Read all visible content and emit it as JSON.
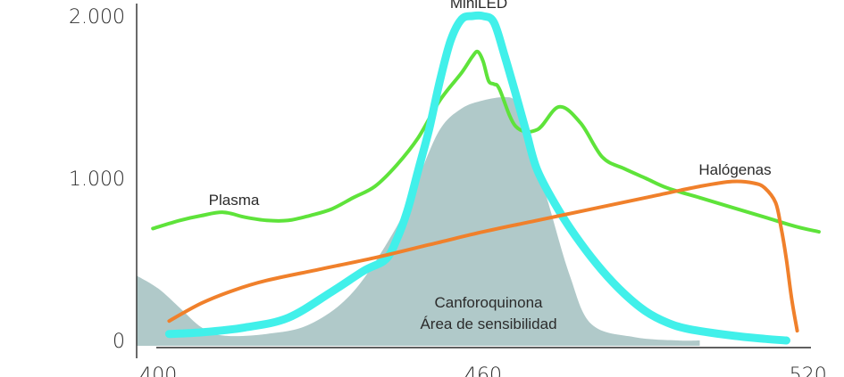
{
  "chart_data": {
    "type": "area",
    "title": "",
    "xlabel": "",
    "ylabel": "",
    "xlim": [
      396,
      524
    ],
    "ylim": [
      0,
      2000
    ],
    "x_ticks": [
      {
        "value": 400,
        "label": "400"
      },
      {
        "value": 460,
        "label": "460"
      },
      {
        "value": 520,
        "label": "520"
      }
    ],
    "y_ticks": [
      {
        "value": 0,
        "label": "0"
      },
      {
        "value": 1000,
        "label": "1.000"
      },
      {
        "value": 2000,
        "label": "2.000"
      }
    ],
    "grid": false,
    "legend": "none",
    "area": {
      "name": "Canforoquinona Área de sensibilidad",
      "label_lines": [
        "Canforoquinona",
        "Área de sensibilidad"
      ],
      "color": "#b0c9c9",
      "x": [
        396,
        400,
        404,
        408,
        412,
        420,
        428,
        436,
        444,
        448,
        452,
        456,
        460,
        464,
        466,
        468,
        472,
        476,
        480,
        488,
        496,
        500
      ],
      "y": [
        400,
        320,
        200,
        80,
        30,
        40,
        100,
        300,
        700,
        1000,
        1300,
        1430,
        1480,
        1500,
        1470,
        1300,
        850,
        400,
        100,
        20,
        0,
        0
      ]
    },
    "series": [
      {
        "name": "Plasma",
        "color": "#5ee33a",
        "x": [
          399,
          404,
          408,
          412,
          416,
          420,
          424,
          428,
          432,
          436,
          440,
          444,
          448,
          452,
          456,
          458,
          459,
          460,
          461,
          462,
          463,
          466,
          470,
          474,
          478,
          482,
          486,
          490,
          494,
          500,
          506,
          512,
          518,
          522
        ],
        "y": [
          690,
          740,
          770,
          790,
          760,
          740,
          740,
          770,
          810,
          880,
          950,
          1080,
          1250,
          1480,
          1650,
          1750,
          1780,
          1720,
          1600,
          1580,
          1550,
          1320,
          1300,
          1440,
          1340,
          1130,
          1060,
          1000,
          940,
          880,
          820,
          760,
          700,
          670
        ]
      },
      {
        "name": "MiniLED",
        "color": "#41f0ea",
        "x": [
          402,
          408,
          416,
          424,
          432,
          438,
          442,
          444,
          446,
          448,
          450,
          452,
          454,
          456,
          458,
          460,
          462,
          464,
          466,
          468,
          470,
          474,
          478,
          482,
          486,
          490,
          494,
          498,
          506,
          512,
          516
        ],
        "y": [
          40,
          50,
          80,
          140,
          300,
          430,
          500,
          620,
          800,
          1050,
          1300,
          1600,
          1850,
          1980,
          2000,
          2000,
          1960,
          1750,
          1520,
          1280,
          1050,
          800,
          600,
          430,
          290,
          180,
          110,
          70,
          30,
          10,
          0
        ]
      },
      {
        "name": "Halógenas",
        "color": "#f0802b",
        "x": [
          402,
          408,
          414,
          420,
          430,
          440,
          450,
          460,
          470,
          480,
          490,
          500,
          506,
          510,
          512,
          514,
          515,
          516,
          517,
          518
        ],
        "y": [
          120,
          230,
          310,
          370,
          440,
          510,
          590,
          670,
          740,
          810,
          880,
          950,
          980,
          970,
          940,
          850,
          700,
          500,
          250,
          60
        ]
      }
    ],
    "annotations": [
      {
        "text": "Plasma",
        "series": "Plasma"
      },
      {
        "text": "Halógenas",
        "series": "Halógenas"
      },
      {
        "text": "MiniLED",
        "series": "MiniLED"
      }
    ]
  }
}
